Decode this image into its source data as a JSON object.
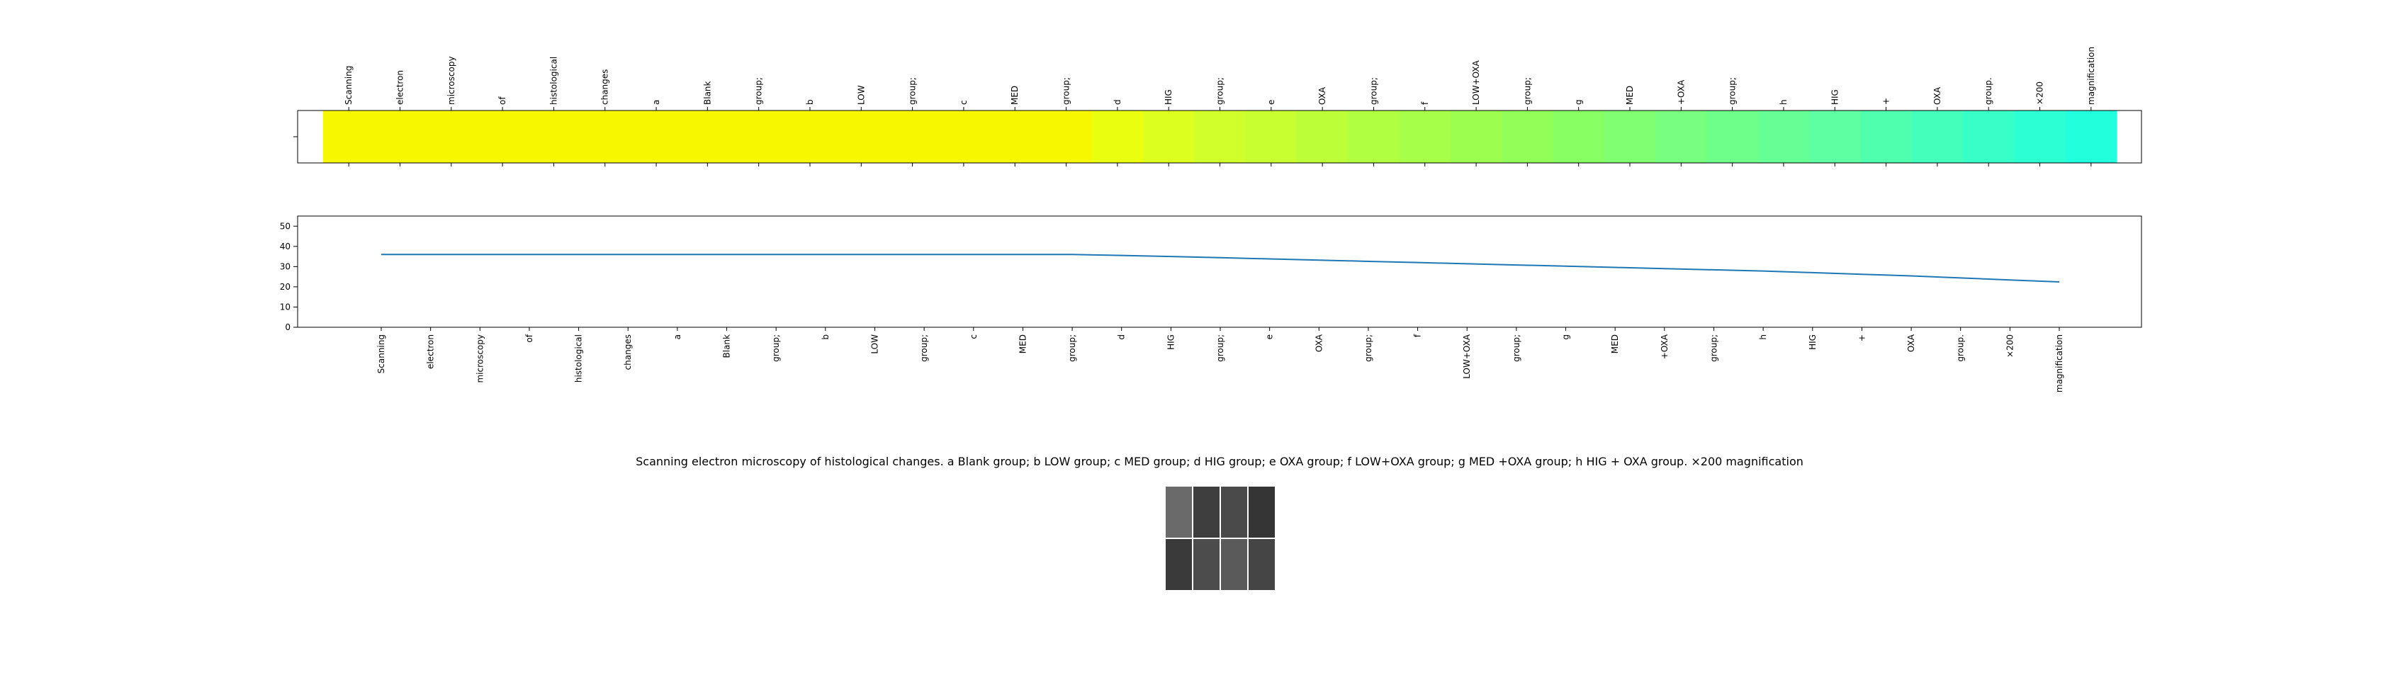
{
  "chart_data": [
    {
      "type": "heatmap",
      "categories": [
        "Scanning",
        "electron",
        "microscopy",
        "of",
        "histological",
        "changes",
        "a",
        "Blank",
        "group;",
        "b",
        "LOW",
        "group;",
        "c",
        "MED",
        "group;",
        "d",
        "HIG",
        "group;",
        "e",
        "OXA",
        "group;",
        "f",
        "LOW+OXA",
        "group;",
        "g",
        "MED",
        "+OXA",
        "group;",
        "h",
        "HIG",
        "+",
        "OXA",
        "group.",
        "×200",
        "magnification"
      ],
      "values": [
        36,
        36,
        36,
        36,
        36,
        36,
        36,
        36,
        36,
        36,
        36,
        36,
        36,
        36,
        36,
        35.6,
        35.2,
        34.8,
        34.4,
        34.0,
        33.6,
        33.2,
        32.8,
        32.4,
        32.0,
        31.6,
        31.2,
        30.8,
        30.4,
        30.0,
        29.6,
        29.2,
        28.8,
        28.4,
        28.0
      ],
      "colors": [
        "#f7f700",
        "#f7f700",
        "#f7f700",
        "#f7f700",
        "#f7f700",
        "#f7f700",
        "#f7f700",
        "#f7f700",
        "#f7f700",
        "#f7f700",
        "#f7f700",
        "#f7f700",
        "#f7f700",
        "#f7f700",
        "#f7f700",
        "#eaff10",
        "#ddff20",
        "#d0ff2c",
        "#c8ff30",
        "#bcff38",
        "#b0ff40",
        "#a6ff48",
        "#9cff50",
        "#92ff58",
        "#88ff62",
        "#80ff70",
        "#78ff80",
        "#6eff8a",
        "#66ff96",
        "#5effa2",
        "#50ffae",
        "#44ffbc",
        "#38ffc8",
        "#2cffd2",
        "#22ffdc"
      ]
    },
    {
      "type": "line",
      "categories": [
        "Scanning",
        "electron",
        "microscopy",
        "of",
        "histological",
        "changes",
        "a",
        "Blank",
        "group;",
        "b",
        "LOW",
        "group;",
        "c",
        "MED",
        "group;",
        "d",
        "HIG",
        "group;",
        "e",
        "OXA",
        "group;",
        "f",
        "LOW+OXA",
        "group;",
        "g",
        "MED",
        "+OXA",
        "group;",
        "h",
        "HIG",
        "+",
        "OXA",
        "group.",
        "×200",
        "magnification"
      ],
      "values": [
        36,
        36,
        36,
        36,
        36,
        36,
        36,
        36,
        36,
        36,
        36,
        36,
        36,
        36,
        36,
        35.5,
        35,
        34.4,
        33.8,
        33.2,
        32.6,
        32,
        31.4,
        30.8,
        30.2,
        29.6,
        29,
        28.4,
        27.8,
        27,
        26.2,
        25.4,
        24.4,
        23.4,
        22.4
      ],
      "color": "#1f77b4",
      "ylim": [
        0,
        55
      ],
      "yticks": [
        0,
        10,
        20,
        30,
        40,
        50
      ]
    }
  ],
  "figure": {
    "caption": "Scanning electron microscopy of histological changes. a Blank group; b LOW group; c MED group; d HIG group; e OXA group; f LOW+OXA group; g MED +OXA group; h HIG + OXA group. ×200 magnification"
  }
}
